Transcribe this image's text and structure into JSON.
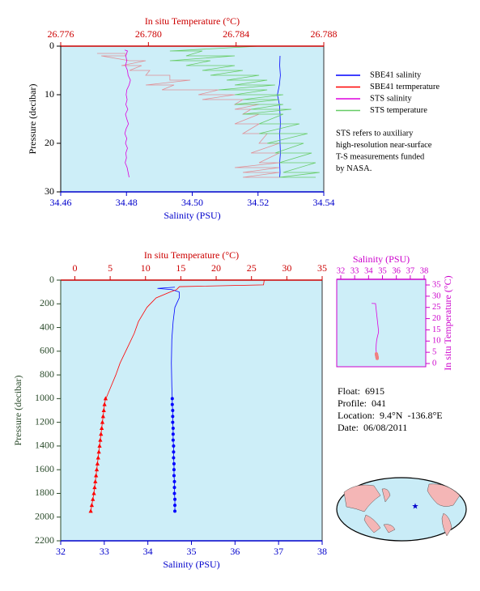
{
  "chart_data": [
    {
      "type": "line",
      "x_label": "Salinity (PSU)",
      "x2_label": "In situ Temperature (°C)",
      "y_label": "Pressure (decibar)",
      "xlim": [
        34.46,
        34.54
      ],
      "xticks": [
        34.46,
        34.48,
        {
          "value": 34.5,
          "label": "34.50"
        },
        34.52,
        34.54
      ],
      "x2lim": [
        26.776,
        26.788
      ],
      "x2ticks": [
        26.776,
        {
          "value": 26.78,
          "label": "26.780"
        },
        26.784,
        26.788
      ],
      "ylim": [
        0,
        30
      ],
      "yticks": [
        0,
        10,
        20,
        30
      ],
      "y_inverted": true,
      "x_position": "bottom",
      "x2_position": "top",
      "y_position": "left",
      "x_color": "#0000cc",
      "x2_color": "#cc0000",
      "y_color": "#000000",
      "background": "#cdeef8",
      "legend": "right",
      "note": [
        "STS refers to auxiliary",
        "high-resolution near-surface",
        "T-S measurements funded",
        "by NASA."
      ],
      "series": [
        {
          "name": "SBE41 salinity",
          "color": "#0000ff",
          "axis": "x",
          "y": [
            2,
            4,
            6,
            8,
            9,
            10,
            11,
            12,
            14,
            16,
            18,
            20,
            22,
            24,
            26,
            27
          ],
          "x": [
            34.5267,
            34.5266,
            34.5268,
            34.5265,
            34.5262,
            34.5259,
            34.5262,
            34.5265,
            34.5267,
            34.5268,
            34.5266,
            34.5267,
            34.5268,
            34.5266,
            34.5267,
            34.5266
          ]
        },
        {
          "name": "SBE41 termperature",
          "color": "#ff0000",
          "axis": "x2",
          "opacity": 0.4,
          "y": [
            1.5,
            1.5,
            2,
            2,
            3,
            3,
            4,
            4,
            5,
            5,
            6,
            6,
            7,
            7,
            8,
            8,
            9,
            9,
            10,
            10,
            11,
            11,
            12,
            12,
            13,
            13,
            14,
            14,
            16,
            16,
            18,
            18,
            20,
            20,
            22,
            22,
            24,
            24,
            25,
            25,
            26,
            26,
            27,
            27
          ],
          "x": [
            26.77766,
            26.77895,
            26.77895,
            26.77785,
            26.77914,
            26.77988,
            26.77877,
            26.77969,
            26.77914,
            26.78006,
            26.77988,
            26.78098,
            26.78098,
            26.78191,
            26.77988,
            26.78117,
            26.78062,
            26.7832,
            26.78228,
            26.78394,
            26.78246,
            26.78431,
            26.78394,
            26.78505,
            26.78394,
            26.78468,
            26.78431,
            26.78505,
            26.78394,
            26.78505,
            26.78431,
            26.78542,
            26.78505,
            26.78597,
            26.78468,
            26.78597,
            26.78505,
            26.78597,
            26.78394,
            26.78597,
            26.78431,
            26.78597,
            26.78431,
            26.78597
          ]
        },
        {
          "name": "STS salinity",
          "color": "#dd00dd",
          "axis": "x",
          "y": [
            0.8,
            1,
            2,
            3,
            4,
            5,
            6,
            7,
            8,
            9,
            10,
            11,
            12,
            13,
            14,
            15,
            16,
            17,
            18,
            19,
            20,
            21,
            22,
            23,
            24,
            25,
            26,
            27
          ],
          "x": [
            34.4795,
            34.4803,
            34.4798,
            34.4801,
            34.4797,
            34.4803,
            34.4805,
            34.4812,
            34.4808,
            34.4801,
            34.4799,
            34.4802,
            34.4798,
            34.4804,
            34.4797,
            34.4801,
            34.4806,
            34.4799,
            34.4795,
            34.4801,
            34.4797,
            34.4803,
            34.4798,
            34.48,
            34.4796,
            34.4802,
            34.4805,
            34.4808
          ]
        },
        {
          "name": "STS temperature",
          "color": "#66cc66",
          "axis": "x2",
          "y": [
            0,
            0,
            1,
            1,
            2,
            2,
            3,
            3,
            4,
            4,
            5,
            5,
            6,
            6,
            7,
            7,
            8,
            8,
            9,
            9,
            10,
            10,
            11,
            11,
            12,
            12,
            13,
            13,
            14,
            14,
            16,
            16,
            18,
            18,
            20,
            20,
            22,
            22,
            24,
            24,
            26,
            26,
            27,
            27
          ],
          "x": [
            26.78098,
            26.78505,
            26.78098,
            26.78246,
            26.78172,
            26.78394,
            26.78098,
            26.78283,
            26.78172,
            26.78394,
            26.78246,
            26.78431,
            26.78283,
            26.78505,
            26.78357,
            26.78542,
            26.78394,
            26.78578,
            26.7832,
            26.78542,
            26.78394,
            26.78615,
            26.78431,
            26.78597,
            26.78394,
            26.78615,
            26.78468,
            26.78652,
            26.78431,
            26.78615,
            26.78505,
            26.78689,
            26.78505,
            26.78726,
            26.78542,
            26.78708,
            26.78578,
            26.78745,
            26.78597,
            26.78763,
            26.78615,
            26.78781,
            26.78597,
            26.78763
          ]
        }
      ]
    },
    {
      "type": "line",
      "x_label": "Salinity (PSU)",
      "x2_label": "In situ Temperature (°C)",
      "y_label": "Pressure (decibar)",
      "xlim": [
        32,
        38
      ],
      "xticks": [
        32,
        33,
        34,
        35,
        36,
        37,
        38
      ],
      "x2lim": [
        -2,
        35
      ],
      "x2ticks": [
        0,
        5,
        10,
        15,
        20,
        25,
        30,
        35
      ],
      "ylim": [
        0,
        2200
      ],
      "yticks": [
        0,
        200,
        400,
        600,
        800,
        1000,
        1200,
        1400,
        1600,
        1800,
        2000,
        2200
      ],
      "y_inverted": true,
      "x_position": "bottom",
      "x2_position": "top",
      "y_position": "left",
      "x_color": "#0000cc",
      "x2_color": "#cc0000",
      "y_color": "#2a4a2a",
      "background": "#cdeef8",
      "series": [
        {
          "color": "#0000ff",
          "axis": "x",
          "y": [
            60,
            70,
            80,
            100,
            150,
            230,
            350,
            500,
            700,
            900,
            1000
          ],
          "x": [
            34.62,
            34.22,
            34.55,
            34.72,
            34.72,
            34.62,
            34.58,
            34.55,
            34.54,
            34.55,
            34.56
          ]
        },
        {
          "color": "#0000ff",
          "axis": "x",
          "marker": "circle",
          "y": [
            1000,
            1050,
            1100,
            1150,
            1200,
            1250,
            1300,
            1350,
            1400,
            1450,
            1500,
            1550,
            1600,
            1650,
            1700,
            1750,
            1800,
            1850,
            1900,
            1950
          ],
          "x": [
            34.56,
            34.56,
            34.57,
            34.57,
            34.57,
            34.58,
            34.58,
            34.58,
            34.59,
            34.59,
            34.59,
            34.6,
            34.6,
            34.6,
            34.61,
            34.61,
            34.61,
            34.62,
            34.62,
            34.62
          ]
        },
        {
          "color": "#ff0000",
          "axis": "x2",
          "y": [
            0,
            40,
            55,
            80,
            100,
            150,
            230,
            350,
            450,
            575,
            700,
            800,
            900,
            1000
          ],
          "x": [
            26.8,
            26.7,
            14.8,
            14.4,
            13.5,
            11.5,
            10.2,
            9.0,
            8.4,
            7.4,
            6.4,
            5.8,
            5.1,
            4.4
          ]
        },
        {
          "color": "#ff0000",
          "axis": "x2",
          "marker": "triangle",
          "y": [
            1000,
            1050,
            1100,
            1150,
            1200,
            1250,
            1300,
            1350,
            1400,
            1450,
            1500,
            1550,
            1600,
            1650,
            1700,
            1750,
            1800,
            1850,
            1900,
            1950
          ],
          "x": [
            4.35,
            4.2,
            4.1,
            4.0,
            3.9,
            3.8,
            3.7,
            3.6,
            3.5,
            3.4,
            3.3,
            3.2,
            3.1,
            3.0,
            2.9,
            2.8,
            2.7,
            2.55,
            2.4,
            2.25
          ]
        }
      ]
    },
    {
      "type": "line",
      "x_label": "Salinity (PSU)",
      "y_label": "In situ Temperature (°C)",
      "xlim": [
        32,
        38
      ],
      "xticks": [
        32,
        33,
        34,
        35,
        36,
        37,
        38
      ],
      "ylim": [
        0,
        35
      ],
      "yticks": [
        0,
        5,
        10,
        15,
        20,
        25,
        30,
        35
      ],
      "y_inverted": false,
      "x_position": "top",
      "y_position": "right",
      "x_color": "#cc00cc",
      "y_color": "#cc00cc",
      "background": "#cdeef8",
      "series": [
        {
          "color": "#dd00dd",
          "axis": "x",
          "x": [
            34.22,
            34.5,
            34.72,
            34.7,
            34.62,
            34.58,
            34.55,
            34.54,
            34.56
          ],
          "y": [
            26.8,
            26.7,
            14.4,
            13.5,
            11.5,
            10.2,
            8.4,
            6.4,
            4.4
          ]
        },
        {
          "color": "#f08080",
          "axis": "x",
          "marker": "circle",
          "x": [
            34.56,
            34.56,
            34.57,
            34.57,
            34.57,
            34.58,
            34.58,
            34.58,
            34.59,
            34.59,
            34.59,
            34.6,
            34.6,
            34.6,
            34.61,
            34.61,
            34.61,
            34.62,
            34.62,
            34.62
          ],
          "y": [
            4.35,
            4.2,
            4.1,
            4.0,
            3.9,
            3.8,
            3.7,
            3.6,
            3.5,
            3.4,
            3.3,
            3.2,
            3.1,
            3.0,
            2.9,
            2.8,
            2.7,
            2.55,
            2.4,
            2.25
          ]
        }
      ]
    }
  ],
  "float_info": [
    "Float:  6915",
    "Profile:  041",
    "Location:  9.4°N  -136.8°E",
    "Date:  06/08/2011"
  ]
}
